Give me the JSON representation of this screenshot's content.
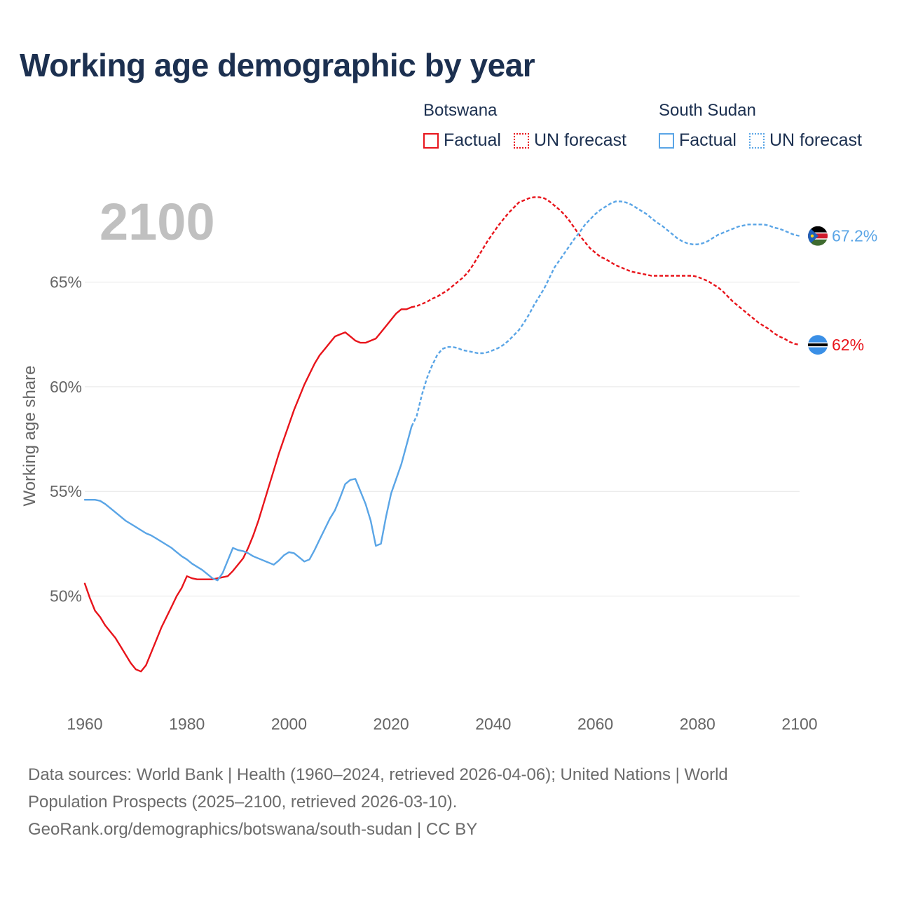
{
  "title": "Working age demographic by year",
  "legend": {
    "groups": [
      {
        "country": "Botswana",
        "factual_label": "Factual",
        "forecast_label": "UN forecast",
        "color": "#e8141b"
      },
      {
        "country": "South Sudan",
        "factual_label": "Factual",
        "forecast_label": "UN forecast",
        "color": "#5aa5e6"
      }
    ]
  },
  "sources": {
    "line1": "Data sources: World Bank | Health (1960–2024, retrieved 2026-04-06); United Nations | World",
    "line2": "Population Prospects (2025–2100, retrieved 2026-03-10).",
    "line3": "GeoRank.org/demographics/botswana/south-sudan | CC BY"
  },
  "chart_data": {
    "type": "line",
    "title": "Working age demographic by year",
    "year_label": "2100",
    "xlabel": "",
    "ylabel": "Working age share",
    "xlim": [
      1960,
      2100
    ],
    "ylim": [
      45,
      69.5
    ],
    "x_ticks": [
      1960,
      1980,
      2000,
      2020,
      2040,
      2060,
      2080,
      2100
    ],
    "y_ticks": [
      50,
      55,
      60,
      65
    ],
    "y_tick_labels": [
      "50%",
      "55%",
      "60%",
      "65%"
    ],
    "grid": true,
    "series": [
      {
        "name": "Botswana",
        "color": "#e8141b",
        "end_label": "62%",
        "flag": "botswana-flag",
        "factual": [
          [
            1960,
            50.6
          ],
          [
            1961,
            49.9
          ],
          [
            1962,
            49.3
          ],
          [
            1963,
            49.0
          ],
          [
            1964,
            48.6
          ],
          [
            1965,
            48.3
          ],
          [
            1966,
            48.0
          ],
          [
            1967,
            47.6
          ],
          [
            1968,
            47.2
          ],
          [
            1969,
            46.8
          ],
          [
            1970,
            46.5
          ],
          [
            1971,
            46.4
          ],
          [
            1972,
            46.7
          ],
          [
            1973,
            47.3
          ],
          [
            1974,
            47.9
          ],
          [
            1975,
            48.5
          ],
          [
            1976,
            49.0
          ],
          [
            1977,
            49.5
          ],
          [
            1978,
            50.0
          ],
          [
            1979,
            50.4
          ],
          [
            1980,
            50.95
          ],
          [
            1981,
            50.85
          ],
          [
            1982,
            50.8
          ],
          [
            1983,
            50.8
          ],
          [
            1984,
            50.8
          ],
          [
            1985,
            50.8
          ],
          [
            1986,
            50.85
          ],
          [
            1987,
            50.9
          ],
          [
            1988,
            50.95
          ],
          [
            1989,
            51.2
          ],
          [
            1990,
            51.5
          ],
          [
            1991,
            51.8
          ],
          [
            1992,
            52.3
          ],
          [
            1993,
            52.9
          ],
          [
            1994,
            53.6
          ],
          [
            1995,
            54.4
          ],
          [
            1996,
            55.2
          ],
          [
            1997,
            56.0
          ],
          [
            1998,
            56.8
          ],
          [
            1999,
            57.5
          ],
          [
            2000,
            58.2
          ],
          [
            2001,
            58.9
          ],
          [
            2002,
            59.5
          ],
          [
            2003,
            60.1
          ],
          [
            2004,
            60.6
          ],
          [
            2005,
            61.1
          ],
          [
            2006,
            61.5
          ],
          [
            2007,
            61.8
          ],
          [
            2008,
            62.1
          ],
          [
            2009,
            62.4
          ],
          [
            2010,
            62.5
          ],
          [
            2011,
            62.6
          ],
          [
            2012,
            62.4
          ],
          [
            2013,
            62.2
          ],
          [
            2014,
            62.1
          ],
          [
            2015,
            62.1
          ],
          [
            2016,
            62.2
          ],
          [
            2017,
            62.3
          ],
          [
            2018,
            62.6
          ],
          [
            2019,
            62.9
          ],
          [
            2020,
            63.2
          ],
          [
            2021,
            63.5
          ],
          [
            2022,
            63.7
          ],
          [
            2023,
            63.7
          ],
          [
            2024,
            63.8
          ]
        ],
        "forecast": [
          [
            2024,
            63.8
          ],
          [
            2025,
            63.85
          ],
          [
            2026,
            63.95
          ],
          [
            2027,
            64.05
          ],
          [
            2028,
            64.2
          ],
          [
            2029,
            64.3
          ],
          [
            2030,
            64.45
          ],
          [
            2031,
            64.6
          ],
          [
            2032,
            64.8
          ],
          [
            2033,
            65.0
          ],
          [
            2034,
            65.2
          ],
          [
            2035,
            65.45
          ],
          [
            2036,
            65.8
          ],
          [
            2037,
            66.2
          ],
          [
            2038,
            66.6
          ],
          [
            2039,
            67.0
          ],
          [
            2040,
            67.35
          ],
          [
            2041,
            67.7
          ],
          [
            2042,
            68.0
          ],
          [
            2043,
            68.3
          ],
          [
            2044,
            68.55
          ],
          [
            2045,
            68.8
          ],
          [
            2046,
            68.9
          ],
          [
            2047,
            69.0
          ],
          [
            2048,
            69.05
          ],
          [
            2049,
            69.05
          ],
          [
            2050,
            69.0
          ],
          [
            2051,
            68.85
          ],
          [
            2052,
            68.65
          ],
          [
            2053,
            68.45
          ],
          [
            2054,
            68.2
          ],
          [
            2055,
            67.9
          ],
          [
            2056,
            67.55
          ],
          [
            2057,
            67.2
          ],
          [
            2058,
            66.9
          ],
          [
            2059,
            66.6
          ],
          [
            2060,
            66.4
          ],
          [
            2061,
            66.2
          ],
          [
            2062,
            66.1
          ],
          [
            2063,
            65.95
          ],
          [
            2064,
            65.8
          ],
          [
            2065,
            65.7
          ],
          [
            2066,
            65.6
          ],
          [
            2067,
            65.5
          ],
          [
            2068,
            65.45
          ],
          [
            2069,
            65.4
          ],
          [
            2070,
            65.35
          ],
          [
            2071,
            65.3
          ],
          [
            2072,
            65.3
          ],
          [
            2073,
            65.3
          ],
          [
            2074,
            65.3
          ],
          [
            2075,
            65.3
          ],
          [
            2076,
            65.3
          ],
          [
            2077,
            65.3
          ],
          [
            2078,
            65.3
          ],
          [
            2079,
            65.3
          ],
          [
            2080,
            65.25
          ],
          [
            2081,
            65.15
          ],
          [
            2082,
            65.05
          ],
          [
            2083,
            64.9
          ],
          [
            2084,
            64.75
          ],
          [
            2085,
            64.55
          ],
          [
            2086,
            64.3
          ],
          [
            2087,
            64.05
          ],
          [
            2088,
            63.85
          ],
          [
            2089,
            63.65
          ],
          [
            2090,
            63.45
          ],
          [
            2091,
            63.25
          ],
          [
            2092,
            63.05
          ],
          [
            2093,
            62.9
          ],
          [
            2094,
            62.75
          ],
          [
            2095,
            62.55
          ],
          [
            2096,
            62.4
          ],
          [
            2097,
            62.3
          ],
          [
            2098,
            62.15
          ],
          [
            2099,
            62.05
          ],
          [
            2100,
            62.0
          ]
        ]
      },
      {
        "name": "South Sudan",
        "color": "#5aa5e6",
        "end_label": "67.2%",
        "flag": "south-sudan-flag",
        "factual": [
          [
            1960,
            54.6
          ],
          [
            1961,
            54.6
          ],
          [
            1962,
            54.6
          ],
          [
            1963,
            54.55
          ],
          [
            1964,
            54.4
          ],
          [
            1965,
            54.2
          ],
          [
            1966,
            54.0
          ],
          [
            1967,
            53.8
          ],
          [
            1968,
            53.6
          ],
          [
            1969,
            53.45
          ],
          [
            1970,
            53.3
          ],
          [
            1971,
            53.15
          ],
          [
            1972,
            53.0
          ],
          [
            1973,
            52.9
          ],
          [
            1974,
            52.75
          ],
          [
            1975,
            52.6
          ],
          [
            1976,
            52.45
          ],
          [
            1977,
            52.3
          ],
          [
            1978,
            52.1
          ],
          [
            1979,
            51.9
          ],
          [
            1980,
            51.75
          ],
          [
            1981,
            51.55
          ],
          [
            1982,
            51.4
          ],
          [
            1983,
            51.25
          ],
          [
            1984,
            51.05
          ],
          [
            1985,
            50.85
          ],
          [
            1986,
            50.75
          ],
          [
            1987,
            51.1
          ],
          [
            1988,
            51.7
          ],
          [
            1989,
            52.3
          ],
          [
            1990,
            52.2
          ],
          [
            1991,
            52.15
          ],
          [
            1992,
            52.05
          ],
          [
            1993,
            51.9
          ],
          [
            1994,
            51.8
          ],
          [
            1995,
            51.7
          ],
          [
            1996,
            51.6
          ],
          [
            1997,
            51.5
          ],
          [
            1998,
            51.7
          ],
          [
            1999,
            51.95
          ],
          [
            2000,
            52.1
          ],
          [
            2001,
            52.05
          ],
          [
            2002,
            51.85
          ],
          [
            2003,
            51.65
          ],
          [
            2004,
            51.75
          ],
          [
            2005,
            52.2
          ],
          [
            2006,
            52.7
          ],
          [
            2007,
            53.2
          ],
          [
            2008,
            53.7
          ],
          [
            2009,
            54.1
          ],
          [
            2010,
            54.7
          ],
          [
            2011,
            55.35
          ],
          [
            2012,
            55.55
          ],
          [
            2013,
            55.6
          ],
          [
            2014,
            55.0
          ],
          [
            2015,
            54.4
          ],
          [
            2016,
            53.6
          ],
          [
            2017,
            52.4
          ],
          [
            2018,
            52.5
          ],
          [
            2019,
            53.8
          ],
          [
            2020,
            54.9
          ],
          [
            2021,
            55.6
          ],
          [
            2022,
            56.3
          ],
          [
            2023,
            57.2
          ],
          [
            2024,
            58.1
          ]
        ],
        "forecast": [
          [
            2024,
            58.1
          ],
          [
            2025,
            58.6
          ],
          [
            2026,
            59.6
          ],
          [
            2027,
            60.4
          ],
          [
            2028,
            61.0
          ],
          [
            2029,
            61.5
          ],
          [
            2030,
            61.8
          ],
          [
            2031,
            61.9
          ],
          [
            2032,
            61.9
          ],
          [
            2033,
            61.85
          ],
          [
            2034,
            61.75
          ],
          [
            2035,
            61.7
          ],
          [
            2036,
            61.65
          ],
          [
            2037,
            61.6
          ],
          [
            2038,
            61.6
          ],
          [
            2039,
            61.65
          ],
          [
            2040,
            61.75
          ],
          [
            2041,
            61.85
          ],
          [
            2042,
            62.0
          ],
          [
            2043,
            62.2
          ],
          [
            2044,
            62.45
          ],
          [
            2045,
            62.7
          ],
          [
            2046,
            63.05
          ],
          [
            2047,
            63.45
          ],
          [
            2048,
            63.9
          ],
          [
            2049,
            64.3
          ],
          [
            2050,
            64.7
          ],
          [
            2051,
            65.2
          ],
          [
            2052,
            65.7
          ],
          [
            2053,
            66.05
          ],
          [
            2054,
            66.4
          ],
          [
            2055,
            66.75
          ],
          [
            2056,
            67.1
          ],
          [
            2057,
            67.4
          ],
          [
            2058,
            67.75
          ],
          [
            2059,
            68.0
          ],
          [
            2060,
            68.25
          ],
          [
            2061,
            68.45
          ],
          [
            2062,
            68.6
          ],
          [
            2063,
            68.75
          ],
          [
            2064,
            68.85
          ],
          [
            2065,
            68.85
          ],
          [
            2066,
            68.8
          ],
          [
            2067,
            68.7
          ],
          [
            2068,
            68.55
          ],
          [
            2069,
            68.4
          ],
          [
            2070,
            68.25
          ],
          [
            2071,
            68.05
          ],
          [
            2072,
            67.85
          ],
          [
            2073,
            67.7
          ],
          [
            2074,
            67.5
          ],
          [
            2075,
            67.3
          ],
          [
            2076,
            67.1
          ],
          [
            2077,
            66.95
          ],
          [
            2078,
            66.85
          ],
          [
            2079,
            66.8
          ],
          [
            2080,
            66.8
          ],
          [
            2081,
            66.85
          ],
          [
            2082,
            66.95
          ],
          [
            2083,
            67.1
          ],
          [
            2084,
            67.25
          ],
          [
            2085,
            67.35
          ],
          [
            2086,
            67.45
          ],
          [
            2087,
            67.55
          ],
          [
            2088,
            67.65
          ],
          [
            2089,
            67.7
          ],
          [
            2090,
            67.75
          ],
          [
            2091,
            67.75
          ],
          [
            2092,
            67.75
          ],
          [
            2093,
            67.75
          ],
          [
            2094,
            67.7
          ],
          [
            2095,
            67.6
          ],
          [
            2096,
            67.55
          ],
          [
            2097,
            67.45
          ],
          [
            2098,
            67.35
          ],
          [
            2099,
            67.25
          ],
          [
            2100,
            67.2
          ]
        ]
      }
    ]
  }
}
